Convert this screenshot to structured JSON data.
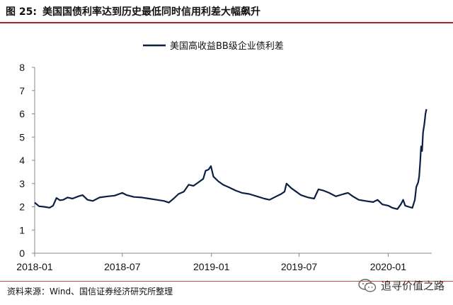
{
  "figure": {
    "label": "图 25:",
    "title": "美国国债利率达到历史最低同时信用利差大幅飙升",
    "source": "资料来源：Wind、国信证券经济研究所整理",
    "watermark": "追寻价值之路"
  },
  "chart_data": {
    "type": "line",
    "title": "",
    "xlabel": "",
    "ylabel": "",
    "ylim": [
      0,
      8
    ],
    "yticks": [
      "0",
      "1",
      "2",
      "3",
      "4",
      "5",
      "6",
      "7",
      "8"
    ],
    "xticks": [
      "2018-01",
      "2018-07",
      "2019-01",
      "2019-07",
      "2020-01"
    ],
    "x_range": [
      "2018-01-01",
      "2020-03-31"
    ],
    "grid": false,
    "legend_position": "top-center",
    "series": [
      {
        "name": "美国高收益BB级企业债利差",
        "color": "#0d1f45",
        "points": [
          [
            "2018-01-01",
            2.18
          ],
          [
            "2018-01-10",
            2.02
          ],
          [
            "2018-01-20",
            2.0
          ],
          [
            "2018-02-01",
            1.96
          ],
          [
            "2018-02-08",
            2.05
          ],
          [
            "2018-02-15",
            2.38
          ],
          [
            "2018-02-22",
            2.28
          ],
          [
            "2018-03-01",
            2.3
          ],
          [
            "2018-03-10",
            2.4
          ],
          [
            "2018-03-20",
            2.35
          ],
          [
            "2018-04-01",
            2.45
          ],
          [
            "2018-04-10",
            2.5
          ],
          [
            "2018-04-20",
            2.3
          ],
          [
            "2018-05-01",
            2.25
          ],
          [
            "2018-05-15",
            2.4
          ],
          [
            "2018-06-01",
            2.45
          ],
          [
            "2018-06-15",
            2.48
          ],
          [
            "2018-07-01",
            2.6
          ],
          [
            "2018-07-10",
            2.5
          ],
          [
            "2018-07-25",
            2.42
          ],
          [
            "2018-08-10",
            2.4
          ],
          [
            "2018-08-25",
            2.35
          ],
          [
            "2018-09-10",
            2.3
          ],
          [
            "2018-09-25",
            2.25
          ],
          [
            "2018-10-05",
            2.18
          ],
          [
            "2018-10-15",
            2.35
          ],
          [
            "2018-10-25",
            2.55
          ],
          [
            "2018-11-05",
            2.65
          ],
          [
            "2018-11-15",
            2.95
          ],
          [
            "2018-11-25",
            2.9
          ],
          [
            "2018-12-05",
            3.05
          ],
          [
            "2018-12-15",
            3.2
          ],
          [
            "2018-12-20",
            3.55
          ],
          [
            "2018-12-26",
            3.6
          ],
          [
            "2018-12-31",
            3.75
          ],
          [
            "2019-01-05",
            3.3
          ],
          [
            "2019-01-15",
            3.1
          ],
          [
            "2019-01-25",
            2.95
          ],
          [
            "2019-02-05",
            2.85
          ],
          [
            "2019-02-20",
            2.7
          ],
          [
            "2019-03-05",
            2.6
          ],
          [
            "2019-03-20",
            2.55
          ],
          [
            "2019-04-05",
            2.45
          ],
          [
            "2019-04-20",
            2.35
          ],
          [
            "2019-05-01",
            2.3
          ],
          [
            "2019-05-15",
            2.45
          ],
          [
            "2019-05-25",
            2.55
          ],
          [
            "2019-06-01",
            2.65
          ],
          [
            "2019-06-05",
            3.0
          ],
          [
            "2019-06-15",
            2.8
          ],
          [
            "2019-06-25",
            2.65
          ],
          [
            "2019-07-05",
            2.5
          ],
          [
            "2019-07-20",
            2.4
          ],
          [
            "2019-08-01",
            2.35
          ],
          [
            "2019-08-10",
            2.75
          ],
          [
            "2019-08-20",
            2.7
          ],
          [
            "2019-09-01",
            2.6
          ],
          [
            "2019-09-15",
            2.45
          ],
          [
            "2019-10-01",
            2.55
          ],
          [
            "2019-10-10",
            2.6
          ],
          [
            "2019-10-20",
            2.45
          ],
          [
            "2019-11-01",
            2.3
          ],
          [
            "2019-11-15",
            2.25
          ],
          [
            "2019-12-01",
            2.2
          ],
          [
            "2019-12-10",
            2.3
          ],
          [
            "2019-12-20",
            2.1
          ],
          [
            "2020-01-01",
            2.05
          ],
          [
            "2020-01-10",
            1.95
          ],
          [
            "2020-01-20",
            1.9
          ],
          [
            "2020-01-27",
            2.1
          ],
          [
            "2020-02-01",
            2.3
          ],
          [
            "2020-02-05",
            2.05
          ],
          [
            "2020-02-12",
            2.0
          ],
          [
            "2020-02-20",
            1.95
          ],
          [
            "2020-02-25",
            2.3
          ],
          [
            "2020-02-28",
            2.85
          ],
          [
            "2020-03-03",
            3.05
          ],
          [
            "2020-03-05",
            3.3
          ],
          [
            "2020-03-07",
            3.9
          ],
          [
            "2020-03-09",
            4.6
          ],
          [
            "2020-03-11",
            4.4
          ],
          [
            "2020-03-13",
            5.2
          ],
          [
            "2020-03-16",
            5.6
          ],
          [
            "2020-03-18",
            6.0
          ],
          [
            "2020-03-20",
            6.2
          ]
        ]
      }
    ]
  }
}
